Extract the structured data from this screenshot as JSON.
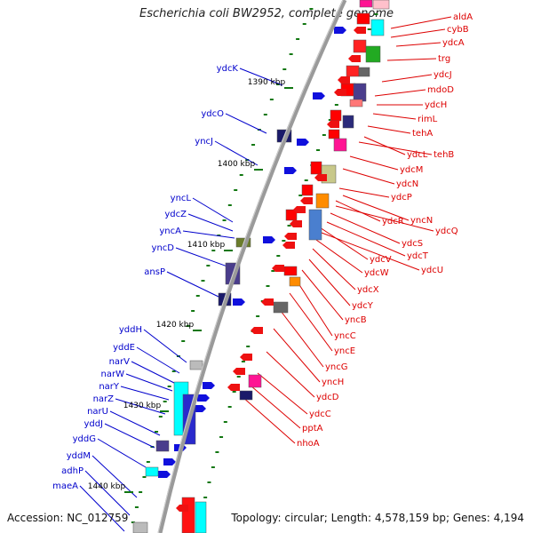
{
  "title": "Escherichia coli BW2952, complete genome",
  "accession": "Accession: NC_012759",
  "summary": "Topology: circular; Length: 4,578,159 bp; Genes: 4,194",
  "colors": {
    "backbone": "#9a9a9a",
    "left_label": "#0000cc",
    "right_label": "#dd0000",
    "tick": "#117711",
    "forward_arrow": "#1010dd",
    "reverse_arrow": "#ee1111"
  },
  "kbp_ticks": [
    "1390 kbp",
    "1400 kbp",
    "1410 kbp",
    "1420 kbp",
    "1430 kbp",
    "1440 kbp"
  ],
  "left_genes": [
    "ydcK",
    "ydcO",
    "yncJ",
    "yncL",
    "ydcZ",
    "yncA",
    "yncD",
    "ansP",
    "yddH",
    "yddE",
    "narV",
    "narW",
    "narY",
    "narZ",
    "narU",
    "yddJ",
    "yddG",
    "yddM",
    "adhP",
    "maeA"
  ],
  "right_genes": [
    "aldA",
    "cybB",
    "ydcA",
    "trg",
    "ydcJ",
    "mdoD",
    "ydcH",
    "rimL",
    "tehA",
    "ydcL",
    "tehB",
    "ydcM",
    "ydcN",
    "ydcP",
    "yncN",
    "ydcR",
    "ydcQ",
    "ydcS",
    "ydcT",
    "ydcV",
    "ydcU",
    "ydcW",
    "ydcX",
    "ydcY",
    "yncB",
    "yncC",
    "yncE",
    "yncG",
    "yncH",
    "ydcD",
    "ydcC",
    "pptA",
    "nhoA"
  ]
}
